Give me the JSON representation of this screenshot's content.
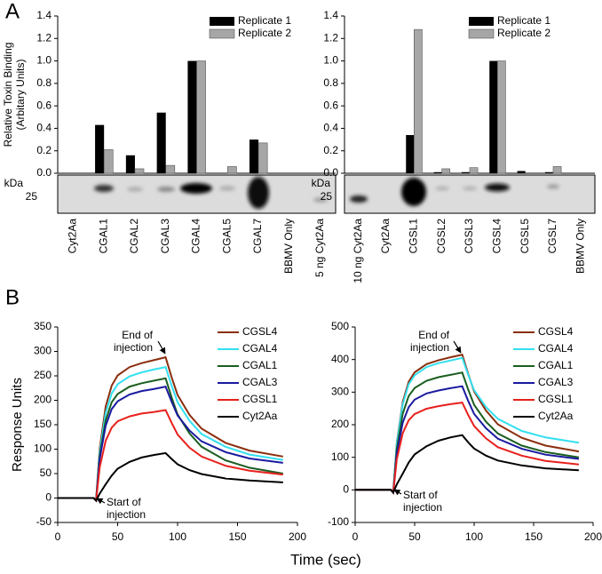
{
  "panel_labels": [
    "A",
    "B"
  ],
  "chart_data": [
    {
      "type": "bar",
      "ylabel": [
        "Relative Toxin Binding",
        "(Arbitary Units)"
      ],
      "blot_unit": "kDa",
      "blot_marker": "25",
      "categories": [
        "Cyt2Aa",
        "CGAL1",
        "CGAL2",
        "CGAL3",
        "CGAL4",
        "CGAL5",
        "CGAL7",
        "BBMV Only",
        "5 ng Cyt2Aa"
      ],
      "series": [
        {
          "name": "Replicate 1",
          "color": "#000000",
          "values": [
            0,
            0.43,
            0.16,
            0.54,
            1.0,
            0,
            0.3,
            0,
            0
          ]
        },
        {
          "name": "Replicate 2",
          "color": "#a6a6a6",
          "values": [
            0,
            0.21,
            0.04,
            0.07,
            1.0,
            0.06,
            0.27,
            0,
            0
          ]
        }
      ],
      "ylim": [
        0,
        1.4
      ],
      "yticks": [
        {
          "value": 0,
          "label": "0.0"
        },
        0.2,
        0.4,
        0.6,
        0.8,
        {
          "value": 1,
          "label": "1.0"
        },
        1.2,
        1.4
      ],
      "legend": "upper right"
    },
    {
      "type": "bar",
      "blot_unit": "kDa",
      "blot_marker": "25",
      "categories": [
        "10 ng Cyt2Aa",
        "Cyt2Aa",
        "CGSL1",
        "CGSL2",
        "CGSL3",
        "CGSL4",
        "CGSL5",
        "CGSL7",
        "BBMV Only"
      ],
      "series": [
        {
          "name": "Replicate 1",
          "color": "#000000",
          "values": [
            0,
            0,
            0.34,
            0.01,
            0.01,
            1.0,
            0.02,
            0.01,
            0
          ]
        },
        {
          "name": "Replicate 2",
          "color": "#a6a6a6",
          "values": [
            0,
            0,
            1.28,
            0.04,
            0.05,
            1.0,
            0,
            0.06,
            0
          ]
        }
      ],
      "ylim": [
        0,
        1.4
      ],
      "yticks": [
        {
          "value": 0,
          "label": "0.0"
        },
        0.2,
        0.4,
        0.6,
        0.8,
        {
          "value": 1,
          "label": "1.0"
        },
        1.2,
        1.4
      ],
      "legend": "upper right"
    },
    {
      "type": "line",
      "ylabel": "Response Units",
      "xlabel": "Time (sec)",
      "annotations": [
        [
          "End of",
          "injection"
        ],
        [
          "Start of",
          "injection"
        ]
      ],
      "x": [
        0,
        30,
        32,
        35,
        40,
        45,
        50,
        60,
        70,
        80,
        90,
        95,
        100,
        110,
        120,
        140,
        160,
        188
      ],
      "series": [
        {
          "name": "CGSL4",
          "color": "#8b2e0e",
          "values": [
            0,
            0,
            -5,
            101,
            187,
            230,
            251,
            268,
            276,
            282,
            288,
            247,
            211,
            170,
            142,
            113,
            97,
            85
          ]
        },
        {
          "name": "CGAL4",
          "color": "#33e0f0",
          "values": [
            0,
            0,
            -5,
            94,
            174,
            214,
            233,
            249,
            257,
            263,
            268,
            230,
            196,
            158,
            131,
            105,
            89,
            78
          ]
        },
        {
          "name": "CGAL1",
          "color": "#1b5e20",
          "values": [
            0,
            0,
            -5,
            86,
            159,
            196,
            213,
            228,
            235,
            240,
            245,
            206,
            171,
            132,
            105,
            77,
            62,
            50
          ]
        },
        {
          "name": "CGAL3",
          "color": "#1a1aa0",
          "values": [
            0,
            0,
            -5,
            80,
            148,
            182,
            198,
            212,
            219,
            223,
            228,
            197,
            169,
            138,
            116,
            94,
            81,
            72
          ]
        },
        {
          "name": "CGSL1",
          "color": "#e8201c",
          "values": [
            0,
            0,
            -5,
            63,
            117,
            144,
            157,
            167,
            173,
            176,
            180,
            154,
            130,
            103,
            85,
            66,
            56,
            48
          ]
        },
        {
          "name": "Cyt2Aa",
          "color": "#000000",
          "values": [
            0,
            0,
            -5,
            9,
            28,
            46,
            60,
            74,
            83,
            88,
            92,
            80,
            69,
            57,
            49,
            40,
            36,
            32
          ]
        }
      ],
      "xlim": [
        0,
        200
      ],
      "xticks": [
        0,
        50,
        100,
        150,
        200
      ],
      "ylim": [
        -50,
        350
      ],
      "yticks": [
        -50,
        0,
        50,
        100,
        150,
        200,
        250,
        300,
        350
      ],
      "legend": "upper right"
    },
    {
      "type": "line",
      "annotations": [
        [
          "End of",
          "injection"
        ],
        [
          "Start of",
          "injection"
        ]
      ],
      "x": [
        0,
        30,
        32,
        35,
        40,
        45,
        50,
        60,
        70,
        80,
        90,
        95,
        100,
        110,
        120,
        140,
        160,
        188
      ],
      "series": [
        {
          "name": "CGSL4",
          "color": "#8b2e0e",
          "values": [
            0,
            0,
            -8,
            145,
            270,
            332,
            361,
            386,
            398,
            407,
            415,
            356,
            302,
            243,
            201,
            160,
            136,
            118
          ]
        },
        {
          "name": "CGAL4",
          "color": "#33e0f0",
          "values": [
            0,
            0,
            -8,
            142,
            263,
            324,
            352,
            377,
            389,
            397,
            405,
            353,
            306,
            254,
            218,
            181,
            161,
            145
          ]
        },
        {
          "name": "CGAL1",
          "color": "#1b5e20",
          "values": [
            0,
            0,
            -8,
            126,
            234,
            288,
            313,
            335,
            346,
            353,
            360,
            308,
            261,
            209,
            173,
            136,
            116,
            100
          ]
        },
        {
          "name": "CGAL3",
          "color": "#1a1aa0",
          "values": [
            0,
            0,
            -8,
            111,
            207,
            254,
            277,
            296,
            305,
            312,
            318,
            273,
            233,
            189,
            157,
            126,
            108,
            95
          ]
        },
        {
          "name": "CGSL1",
          "color": "#e8201c",
          "values": [
            0,
            0,
            -8,
            94,
            174,
            214,
            233,
            249,
            257,
            263,
            268,
            230,
            196,
            158,
            131,
            105,
            89,
            78
          ]
        },
        {
          "name": "Cyt2Aa",
          "color": "#000000",
          "values": [
            0,
            0,
            -8,
            17,
            50,
            84,
            109,
            134,
            151,
            161,
            168,
            146,
            127,
            105,
            90,
            75,
            66,
            60
          ]
        }
      ],
      "xlim": [
        0,
        200
      ],
      "xticks": [
        0,
        50,
        100,
        150,
        200
      ],
      "ylim": [
        -100,
        500
      ],
      "yticks": [
        -100,
        0,
        100,
        200,
        300,
        400,
        500
      ],
      "legend": "upper right"
    }
  ]
}
